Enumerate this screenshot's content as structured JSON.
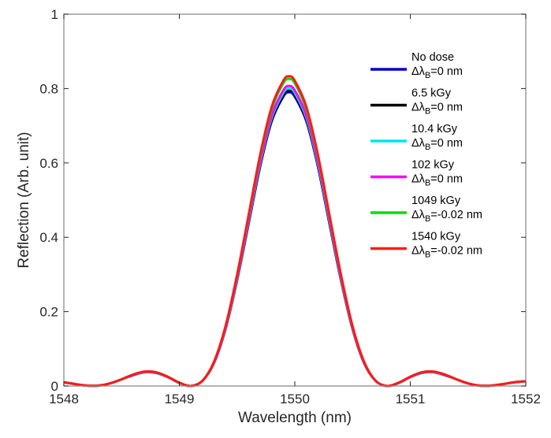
{
  "chart_data": {
    "type": "line",
    "title": "",
    "xlabel": "Wavelength (nm)",
    "ylabel": "Reflection (Arb. unit)",
    "xlim": [
      1548,
      1552
    ],
    "ylim": [
      0,
      1
    ],
    "xticks": [
      "1548",
      "1549",
      "1550",
      "1551",
      "1552"
    ],
    "yticks": [
      "0",
      "0.2",
      "0.4",
      "0.6",
      "0.8",
      "1"
    ],
    "grid": false,
    "legend_placement": "top-right",
    "x": [
      1548.0,
      1548.1,
      1548.2,
      1548.3,
      1548.4,
      1548.5,
      1548.6,
      1548.7,
      1548.8,
      1548.9,
      1549.0,
      1549.1,
      1549.2,
      1549.3,
      1549.4,
      1549.5,
      1549.6,
      1549.7,
      1549.8,
      1549.9,
      1549.95,
      1550.0,
      1550.1,
      1550.2,
      1550.3,
      1550.4,
      1550.5,
      1550.6,
      1550.7,
      1550.8,
      1550.9,
      1551.0,
      1551.1,
      1551.2,
      1551.3,
      1551.4,
      1551.5,
      1551.6,
      1551.7,
      1551.8,
      1551.9,
      1552.0
    ],
    "series": [
      {
        "name": "No dose",
        "shift": "=0 nm",
        "color": "#0000c8",
        "values": [
          0.01,
          0.005,
          0.001,
          0.001,
          0.007,
          0.018,
          0.029,
          0.037,
          0.035,
          0.024,
          0.008,
          0,
          0.014,
          0.062,
          0.153,
          0.284,
          0.436,
          0.59,
          0.712,
          0.778,
          0.79,
          0.778,
          0.712,
          0.59,
          0.436,
          0.284,
          0.153,
          0.062,
          0.014,
          0,
          0.008,
          0.024,
          0.035,
          0.037,
          0.029,
          0.018,
          0.007,
          0.001,
          0.001,
          0.005,
          0.01,
          0.013
        ]
      },
      {
        "name": "6.5 kGy",
        "shift": "=0 nm",
        "color": "#000000",
        "values": [
          0.01,
          0.005,
          0.001,
          0.001,
          0.007,
          0.018,
          0.03,
          0.037,
          0.035,
          0.024,
          0.008,
          0,
          0.014,
          0.062,
          0.154,
          0.285,
          0.439,
          0.593,
          0.716,
          0.783,
          0.795,
          0.783,
          0.716,
          0.593,
          0.439,
          0.285,
          0.154,
          0.062,
          0.014,
          0,
          0.008,
          0.024,
          0.035,
          0.037,
          0.03,
          0.018,
          0.007,
          0.001,
          0.001,
          0.005,
          0.01,
          0.013
        ]
      },
      {
        "name": "10.4 kGy",
        "shift": "=0 nm",
        "color": "#00e5ee",
        "values": [
          0.01,
          0.005,
          0.001,
          0.001,
          0.007,
          0.018,
          0.03,
          0.037,
          0.035,
          0.024,
          0.008,
          0,
          0.014,
          0.063,
          0.155,
          0.287,
          0.442,
          0.597,
          0.721,
          0.788,
          0.8,
          0.788,
          0.721,
          0.597,
          0.442,
          0.287,
          0.155,
          0.063,
          0.014,
          0,
          0.008,
          0.024,
          0.035,
          0.037,
          0.03,
          0.018,
          0.007,
          0.001,
          0.001,
          0.005,
          0.01,
          0.013
        ]
      },
      {
        "name": "102 kGy",
        "shift": "=0 nm",
        "color": "#ff00ff",
        "values": [
          0.01,
          0.005,
          0.001,
          0.001,
          0.007,
          0.018,
          0.03,
          0.037,
          0.036,
          0.024,
          0.009,
          0,
          0.014,
          0.063,
          0.156,
          0.29,
          0.446,
          0.602,
          0.727,
          0.795,
          0.807,
          0.795,
          0.727,
          0.602,
          0.446,
          0.29,
          0.156,
          0.063,
          0.014,
          0,
          0.009,
          0.024,
          0.036,
          0.037,
          0.03,
          0.018,
          0.007,
          0.001,
          0.001,
          0.005,
          0.01,
          0.013
        ]
      },
      {
        "name": "1049 kGy",
        "shift": "=-0.02 nm",
        "color": "#00e000",
        "values": [
          0.01,
          0.005,
          0.001,
          0.001,
          0.007,
          0.018,
          0.031,
          0.038,
          0.037,
          0.025,
          0.009,
          0,
          0.014,
          0.065,
          0.16,
          0.297,
          0.456,
          0.616,
          0.744,
          0.814,
          0.826,
          0.814,
          0.744,
          0.616,
          0.456,
          0.297,
          0.16,
          0.065,
          0.014,
          0,
          0.009,
          0.025,
          0.037,
          0.038,
          0.031,
          0.018,
          0.007,
          0.001,
          0.001,
          0.005,
          0.01,
          0.013
        ]
      },
      {
        "name": "1540 kGy",
        "shift": "=-0.02 nm",
        "color": "#ff1a1a",
        "values": [
          0.01,
          0.005,
          0.001,
          0.001,
          0.007,
          0.018,
          0.031,
          0.039,
          0.037,
          0.025,
          0.009,
          0,
          0.014,
          0.065,
          0.161,
          0.299,
          0.46,
          0.622,
          0.751,
          0.821,
          0.833,
          0.821,
          0.751,
          0.622,
          0.46,
          0.299,
          0.161,
          0.065,
          0.014,
          0,
          0.009,
          0.025,
          0.037,
          0.039,
          0.031,
          0.018,
          0.007,
          0.001,
          0.001,
          0.005,
          0.01,
          0.013
        ]
      }
    ],
    "legend_symbol": "Δλ",
    "legend_subscript": "B"
  }
}
